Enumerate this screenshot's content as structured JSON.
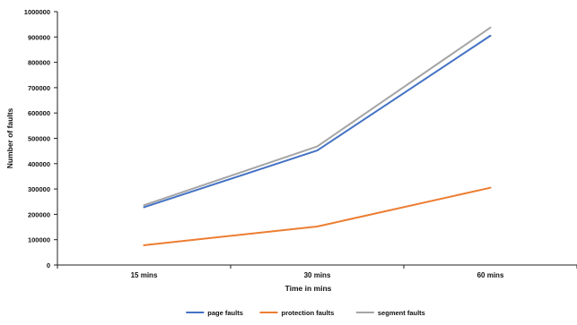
{
  "chart_data": {
    "type": "line",
    "title": "",
    "categories": [
      "15 mins",
      "30 mins",
      "60 mins"
    ],
    "xlabel": "Time in mins",
    "ylabel": "Number of faults",
    "ylim": [
      0,
      1000000
    ],
    "yticks": [
      0,
      100000,
      200000,
      300000,
      400000,
      500000,
      600000,
      700000,
      800000,
      900000,
      1000000
    ],
    "grid": false,
    "legend_position": "bottom",
    "series": [
      {
        "name": "page faults",
        "color": "#4472C4",
        "values": [
          228000,
          452000,
          905000
        ]
      },
      {
        "name": "protection faults",
        "color": "#ED7D31",
        "values": [
          78000,
          152000,
          305000
        ]
      },
      {
        "name": "segment faults",
        "color": "#A5A5A5",
        "values": [
          236000,
          468000,
          937000
        ]
      }
    ]
  }
}
